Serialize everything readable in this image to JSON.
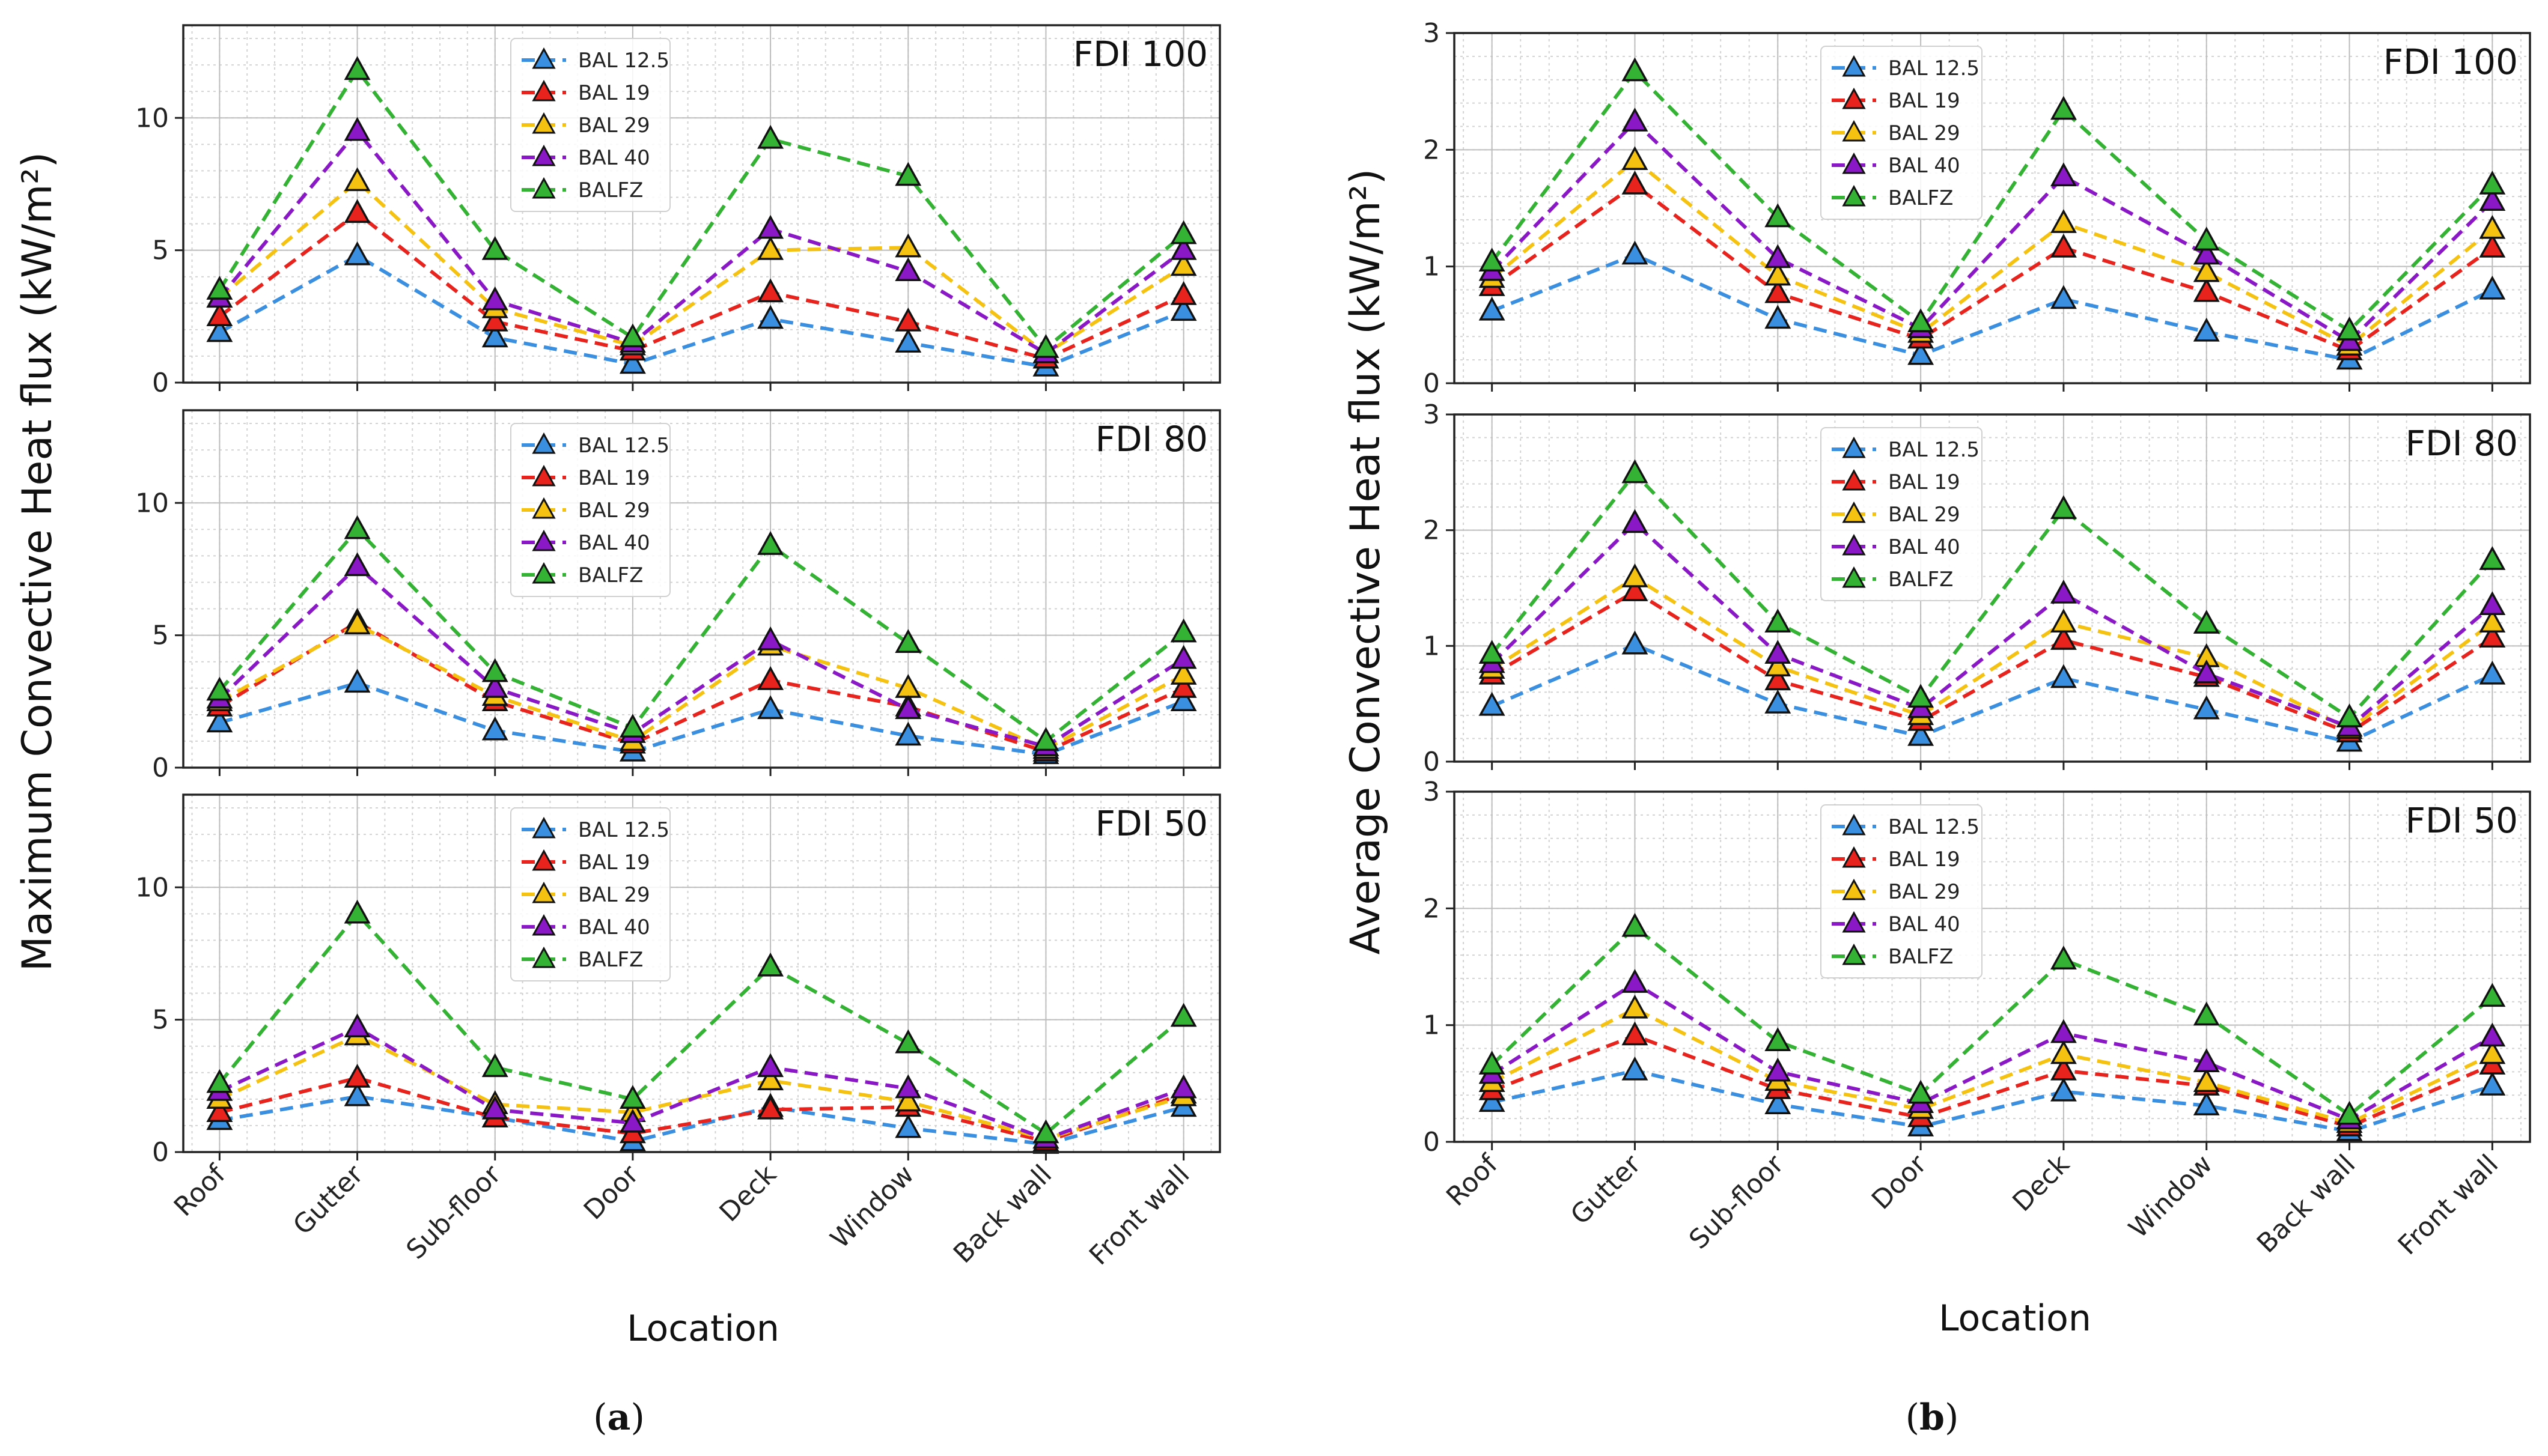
{
  "colors": {
    "BAL 12.5": "#3b8fe0",
    "BAL 19": "#e8221c",
    "BAL 29": "#f5c211",
    "BAL 40": "#8a18c7",
    "BALFZ": "#34b233"
  },
  "x_title": "Location",
  "figure_a": {
    "panel_label_open": "(",
    "panel_label_letter": "a",
    "panel_label_close": ")",
    "y_title": "Maximum Convective Heat flux (kW/m²)"
  },
  "figure_b": {
    "panel_label_open": "(",
    "panel_label_letter": "b",
    "panel_label_close": ")",
    "y_title": "Average Convective Heat flux (kW/m²)"
  },
  "chart_data": [
    {
      "type": "line",
      "figure": "a",
      "title": "FDI 100",
      "categories": [
        "Roof",
        "Gutter",
        "Sub-floor",
        "Door",
        "Deck",
        "Window",
        "Back wall",
        "Front wall"
      ],
      "ylim": [
        0,
        13.5
      ],
      "yticks": [
        0,
        5,
        10
      ],
      "ylabel": "Maximum Convective Heat flux (kW/m²)",
      "xlabel": "Location",
      "series": [
        {
          "name": "BAL 12.5",
          "values": [
            1.9,
            4.8,
            1.7,
            0.7,
            2.4,
            1.5,
            0.6,
            2.7
          ]
        },
        {
          "name": "BAL 19",
          "values": [
            2.5,
            6.4,
            2.3,
            1.2,
            3.4,
            2.3,
            0.9,
            3.3
          ]
        },
        {
          "name": "BAL 29",
          "values": [
            3.2,
            7.6,
            2.8,
            1.4,
            5.0,
            5.1,
            1.1,
            4.4
          ]
        },
        {
          "name": "BAL 40",
          "values": [
            3.2,
            9.5,
            3.1,
            1.5,
            5.8,
            4.2,
            1.1,
            5.0
          ]
        },
        {
          "name": "BALFZ",
          "values": [
            3.5,
            11.8,
            5.0,
            1.7,
            9.2,
            7.8,
            1.3,
            5.6
          ]
        }
      ]
    },
    {
      "type": "line",
      "figure": "a",
      "title": "FDI 80",
      "categories": [
        "Roof",
        "Gutter",
        "Sub-floor",
        "Door",
        "Deck",
        "Window",
        "Back wall",
        "Front wall"
      ],
      "ylim": [
        0,
        13.5
      ],
      "yticks": [
        0,
        5,
        10
      ],
      "ylabel": "Maximum Convective Heat flux (kW/m²)",
      "xlabel": "Location",
      "series": [
        {
          "name": "BAL 12.5",
          "values": [
            1.7,
            3.2,
            1.4,
            0.6,
            2.2,
            1.2,
            0.5,
            2.5
          ]
        },
        {
          "name": "BAL 19",
          "values": [
            2.3,
            5.5,
            2.5,
            0.9,
            3.3,
            2.3,
            0.6,
            3.0
          ]
        },
        {
          "name": "BAL 29",
          "values": [
            2.5,
            5.4,
            2.7,
            1.0,
            4.6,
            3.0,
            0.7,
            3.5
          ]
        },
        {
          "name": "BAL 40",
          "values": [
            2.6,
            7.6,
            3.0,
            1.3,
            4.8,
            2.2,
            0.8,
            4.1
          ]
        },
        {
          "name": "BALFZ",
          "values": [
            2.9,
            9.0,
            3.6,
            1.5,
            8.4,
            4.7,
            1.0,
            5.1
          ]
        }
      ]
    },
    {
      "type": "line",
      "figure": "a",
      "title": "FDI 50",
      "categories": [
        "Roof",
        "Gutter",
        "Sub-floor",
        "Door",
        "Deck",
        "Window",
        "Back wall",
        "Front wall"
      ],
      "ylim": [
        0,
        13.5
      ],
      "yticks": [
        0,
        5,
        10
      ],
      "ylabel": "Maximum Convective Heat flux (kW/m²)",
      "xlabel": "Location",
      "series": [
        {
          "name": "BAL 12.5",
          "values": [
            1.2,
            2.1,
            1.3,
            0.4,
            1.7,
            0.9,
            0.3,
            1.7
          ]
        },
        {
          "name": "BAL 19",
          "values": [
            1.5,
            2.8,
            1.3,
            0.7,
            1.6,
            1.7,
            0.4,
            2.2
          ]
        },
        {
          "name": "BAL 29",
          "values": [
            2.0,
            4.4,
            1.8,
            1.5,
            2.7,
            1.9,
            0.5,
            2.1
          ]
        },
        {
          "name": "BAL 40",
          "values": [
            2.3,
            4.7,
            1.6,
            1.1,
            3.2,
            2.4,
            0.5,
            2.4
          ]
        },
        {
          "name": "BALFZ",
          "values": [
            2.6,
            9.0,
            3.2,
            2.0,
            7.0,
            4.1,
            0.7,
            5.1
          ]
        }
      ]
    },
    {
      "type": "line",
      "figure": "b",
      "title": "FDI 100",
      "categories": [
        "Roof",
        "Gutter",
        "Sub-floor",
        "Door",
        "Deck",
        "Window",
        "Back wall",
        "Front wall"
      ],
      "ylim": [
        0,
        3
      ],
      "yticks": [
        0,
        1,
        2,
        3
      ],
      "ylabel": "Average Convective Heat flux (kW/m²)",
      "xlabel": "Location",
      "series": [
        {
          "name": "BAL 12.5",
          "values": [
            0.62,
            1.1,
            0.55,
            0.24,
            0.72,
            0.44,
            0.2,
            0.8
          ]
        },
        {
          "name": "BAL 19",
          "values": [
            0.83,
            1.7,
            0.77,
            0.38,
            1.16,
            0.78,
            0.28,
            1.16
          ]
        },
        {
          "name": "BAL 29",
          "values": [
            0.9,
            1.91,
            0.92,
            0.43,
            1.37,
            0.95,
            0.32,
            1.32
          ]
        },
        {
          "name": "BAL 40",
          "values": [
            0.96,
            2.24,
            1.07,
            0.47,
            1.77,
            1.1,
            0.36,
            1.56
          ]
        },
        {
          "name": "BALFZ",
          "values": [
            1.04,
            2.67,
            1.42,
            0.52,
            2.34,
            1.22,
            0.45,
            1.7
          ]
        }
      ]
    },
    {
      "type": "line",
      "figure": "b",
      "title": "FDI 80",
      "categories": [
        "Roof",
        "Gutter",
        "Sub-floor",
        "Door",
        "Deck",
        "Window",
        "Back wall",
        "Front wall"
      ],
      "ylim": [
        0,
        3
      ],
      "yticks": [
        0,
        1,
        2,
        3
      ],
      "ylabel": "Average Convective Heat flux (kW/m²)",
      "xlabel": "Location",
      "series": [
        {
          "name": "BAL 12.5",
          "values": [
            0.48,
            1.01,
            0.5,
            0.22,
            0.72,
            0.45,
            0.17,
            0.75
          ]
        },
        {
          "name": "BAL 19",
          "values": [
            0.75,
            1.47,
            0.7,
            0.35,
            1.05,
            0.73,
            0.25,
            1.07
          ]
        },
        {
          "name": "BAL 29",
          "values": [
            0.8,
            1.59,
            0.82,
            0.4,
            1.2,
            0.9,
            0.28,
            1.2
          ]
        },
        {
          "name": "BAL 40",
          "values": [
            0.85,
            2.06,
            0.93,
            0.46,
            1.45,
            0.76,
            0.3,
            1.35
          ]
        },
        {
          "name": "BALFZ",
          "values": [
            0.93,
            2.49,
            1.2,
            0.55,
            2.18,
            1.19,
            0.38,
            1.74
          ]
        }
      ]
    },
    {
      "type": "line",
      "figure": "b",
      "title": "FDI 50",
      "categories": [
        "Roof",
        "Gutter",
        "Sub-floor",
        "Door",
        "Deck",
        "Window",
        "Back wall",
        "Front wall"
      ],
      "ylim": [
        0,
        3
      ],
      "yticks": [
        0,
        1,
        2,
        3
      ],
      "ylabel": "Average Convective Heat flux (kW/m²)",
      "xlabel": "Location",
      "series": [
        {
          "name": "BAL 12.5",
          "values": [
            0.34,
            0.61,
            0.32,
            0.13,
            0.43,
            0.31,
            0.09,
            0.48
          ]
        },
        {
          "name": "BAL 19",
          "values": [
            0.44,
            0.91,
            0.45,
            0.21,
            0.61,
            0.48,
            0.13,
            0.66
          ]
        },
        {
          "name": "BAL 29",
          "values": [
            0.51,
            1.14,
            0.52,
            0.28,
            0.75,
            0.51,
            0.16,
            0.75
          ]
        },
        {
          "name": "BAL 40",
          "values": [
            0.58,
            1.36,
            0.6,
            0.33,
            0.93,
            0.68,
            0.19,
            0.9
          ]
        },
        {
          "name": "BALFZ",
          "values": [
            0.66,
            1.84,
            0.86,
            0.41,
            1.56,
            1.08,
            0.23,
            1.24
          ]
        }
      ]
    }
  ]
}
